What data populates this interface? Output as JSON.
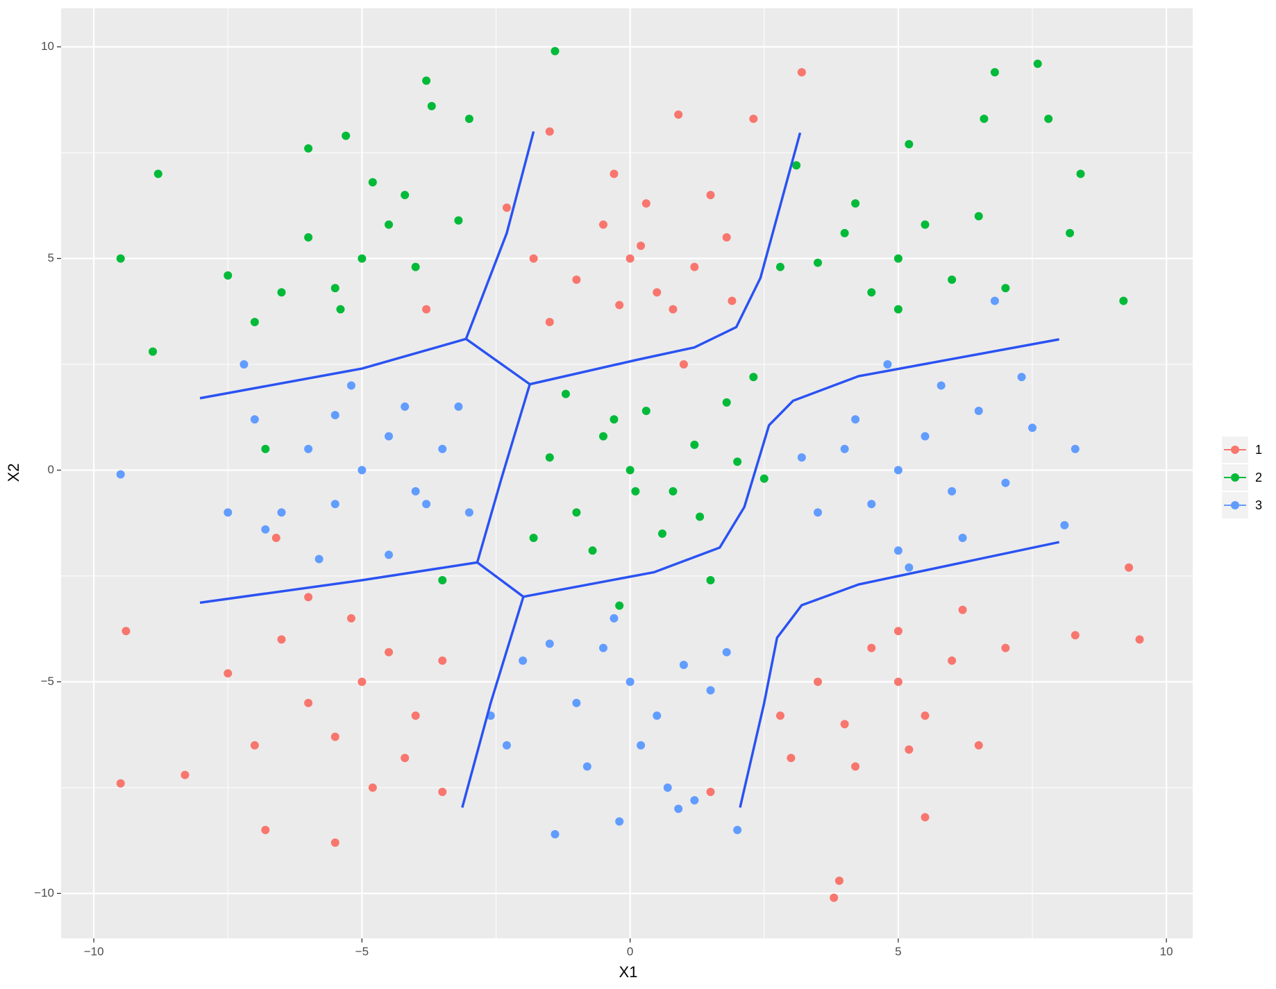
{
  "chart_data": {
    "type": "scatter",
    "x_label": "X1",
    "y_label": "X2",
    "xlim": [
      -10.61,
      10.49
    ],
    "ylim": [
      -11.06,
      10.91
    ],
    "xticks": [
      {
        "value": -10,
        "label": "−10"
      },
      {
        "value": -5,
        "label": "−5"
      },
      0,
      5,
      10
    ],
    "yticks": [
      {
        "value": -10,
        "label": "−10"
      },
      {
        "value": -5,
        "label": "−5"
      },
      0,
      5,
      10
    ],
    "grid": true,
    "minor_grid": true,
    "legend_position": "right",
    "series": [
      {
        "name": "1",
        "color": "#F8766D",
        "x": [
          0,
          0.5,
          -0.5,
          1.2,
          -1,
          0.3,
          1.8,
          -1.5,
          0.8,
          -0.2,
          1.5,
          0.9,
          -1.5,
          2.3,
          -0.3,
          1.9,
          -1.8,
          0.2,
          1,
          -2.3,
          3.2,
          -5,
          -4.5,
          -6,
          -5.5,
          -4,
          -3.5,
          -6.5,
          -7,
          -5.2,
          -4.2,
          -6.8,
          -5.5,
          -8.3,
          -9.5,
          -9.4,
          -3.5,
          -6,
          -7.5,
          -4.8,
          5,
          4.5,
          5.5,
          6,
          4,
          3.5,
          6.5,
          5,
          7,
          4.2,
          3.8,
          3.9,
          5.5,
          8.3,
          9.3,
          9.5,
          3,
          6.2,
          2.8,
          5.2,
          -6.6,
          1.5,
          -3.8
        ],
        "y": [
          5,
          4.2,
          5.8,
          4.8,
          4.5,
          6.3,
          5.5,
          3.5,
          3.8,
          3.9,
          6.5,
          8.4,
          8,
          8.3,
          7,
          4,
          5,
          5.3,
          2.5,
          6.2,
          9.4,
          -5,
          -4.3,
          -5.5,
          -6.3,
          -5.8,
          -4.5,
          -4,
          -6.5,
          -3.5,
          -6.8,
          -8.5,
          -8.8,
          -7.2,
          -7.4,
          -3.8,
          -7.6,
          -3,
          -4.8,
          -7.5,
          -5,
          -4.2,
          -5.8,
          -4.5,
          -6,
          -5,
          -6.5,
          -3.8,
          -4.2,
          -7,
          -10.1,
          -9.7,
          -8.2,
          -3.9,
          -2.3,
          -4,
          -6.8,
          -3.3,
          -5.8,
          -6.6,
          -1.6,
          -7.6,
          3.8
        ]
      },
      {
        "name": "2",
        "color": "#00BA38",
        "x": [
          -5,
          -4.5,
          -5.5,
          -6,
          -4,
          -4.2,
          -6.5,
          -3.7,
          -3.8,
          -8.8,
          -9.5,
          -8.9,
          -5.3,
          -7.5,
          -3.2,
          -6,
          -5.4,
          -4.8,
          -7,
          -3,
          0,
          -0.5,
          0.8,
          -1,
          1.2,
          0.3,
          -1.5,
          1.8,
          -0.7,
          0.6,
          2,
          -0.2,
          -1.8,
          1.5,
          -3.5,
          -0.3,
          1.3,
          0.1,
          -1.2,
          2.5,
          5,
          4.5,
          5.5,
          6,
          4,
          3.5,
          6.5,
          5,
          7,
          4.2,
          5.2,
          6.8,
          7.6,
          7.8,
          8.4,
          9.2,
          3.1,
          6.6,
          8.2,
          2.8,
          -1.4,
          -6.8,
          2.3
        ],
        "y": [
          5,
          5.8,
          4.3,
          5.5,
          4.8,
          6.5,
          4.2,
          8.6,
          9.2,
          7,
          5,
          2.8,
          7.9,
          4.6,
          5.9,
          7.6,
          3.8,
          6.8,
          3.5,
          8.3,
          0,
          0.8,
          -0.5,
          -1,
          0.6,
          1.4,
          0.3,
          1.6,
          -1.9,
          -1.5,
          0.2,
          -3.2,
          -1.6,
          -2.6,
          -2.6,
          1.2,
          -1.1,
          -0.5,
          1.8,
          -0.2,
          5,
          4.2,
          5.8,
          4.5,
          5.6,
          4.9,
          6,
          3.8,
          4.3,
          6.3,
          7.7,
          9.4,
          9.6,
          8.3,
          7,
          4,
          7.2,
          8.3,
          5.6,
          4.8,
          9.9,
          0.5,
          2.2
        ]
      },
      {
        "name": "3",
        "color": "#619CFF",
        "x": [
          -5,
          -4.5,
          -5.5,
          -6,
          -4,
          -4.2,
          -6.5,
          -3.5,
          -5.2,
          -7,
          -3,
          -6.8,
          -7.2,
          -5.5,
          -4.5,
          -3.8,
          -9.5,
          -7.5,
          -5.8,
          -3.2,
          5,
          4.5,
          5.5,
          6,
          4,
          6.5,
          7,
          5,
          3.5,
          4.2,
          7.5,
          8.3,
          8.1,
          7.3,
          3.2,
          5.8,
          6.2,
          4.8,
          6.8,
          5.2,
          0,
          -0.5,
          0.5,
          1,
          -1,
          -1.5,
          1.5,
          0.2,
          -0.8,
          0.7,
          -0.2,
          -1.4,
          2,
          1.2,
          -2.3,
          -2.6,
          1.8,
          -0.3,
          -2,
          0.9
        ],
        "y": [
          0,
          0.8,
          -0.8,
          0.5,
          -0.5,
          1.5,
          -1,
          0.5,
          2,
          1.2,
          -1,
          -1.4,
          2.5,
          1.3,
          -2,
          -0.8,
          -0.1,
          -1,
          -2.1,
          1.5,
          0,
          -0.8,
          0.8,
          -0.5,
          0.5,
          1.4,
          -0.3,
          -1.9,
          -1,
          1.2,
          1,
          0.5,
          -1.3,
          2.2,
          0.3,
          2,
          -1.6,
          2.5,
          4,
          -2.3,
          -5,
          -4.2,
          -5.8,
          -4.6,
          -5.5,
          -4.1,
          -5.2,
          -6.5,
          -7,
          -7.5,
          -8.3,
          -8.6,
          -8.5,
          -7.8,
          -6.5,
          -5.8,
          -4.3,
          -3.5,
          -4.5,
          -8
        ]
      }
    ],
    "boundary_color": "#2A52F2",
    "boundaries": [
      {
        "x": [
          -1.8,
          -2.3,
          -3.06
        ],
        "y": [
          8,
          5.6,
          3.1
        ]
      },
      {
        "x": [
          -8.02,
          -5,
          -3.06,
          -1.87,
          0.14,
          1.2,
          1.98,
          2.43,
          3.17
        ],
        "y": [
          1.7,
          2.4,
          3.1,
          2.03,
          2.61,
          2.9,
          3.38,
          4.54,
          7.97
        ]
      },
      {
        "x": [
          -1.87,
          -2.4,
          -2.85
        ],
        "y": [
          2.03,
          -0.2,
          -2.18
        ]
      },
      {
        "x": [
          -8.02,
          -5,
          -2.85,
          -1.99,
          0.45,
          1.67,
          2.13,
          2.59,
          3.04,
          4.26,
          8
        ],
        "y": [
          -3.13,
          -2.6,
          -2.18,
          -2.99,
          -2.41,
          -1.83,
          -0.87,
          1.06,
          1.64,
          2.22,
          3.09
        ]
      },
      {
        "x": [
          -1.99,
          -2.6,
          -3.13
        ],
        "y": [
          -2.99,
          -5.5,
          -7.97
        ]
      },
      {
        "x": [
          2.05,
          2.5,
          2.74,
          3.2,
          4.26,
          8
        ],
        "y": [
          -7.97,
          -5.5,
          -3.96,
          -3.19,
          -2.7,
          -1.7
        ]
      }
    ]
  }
}
